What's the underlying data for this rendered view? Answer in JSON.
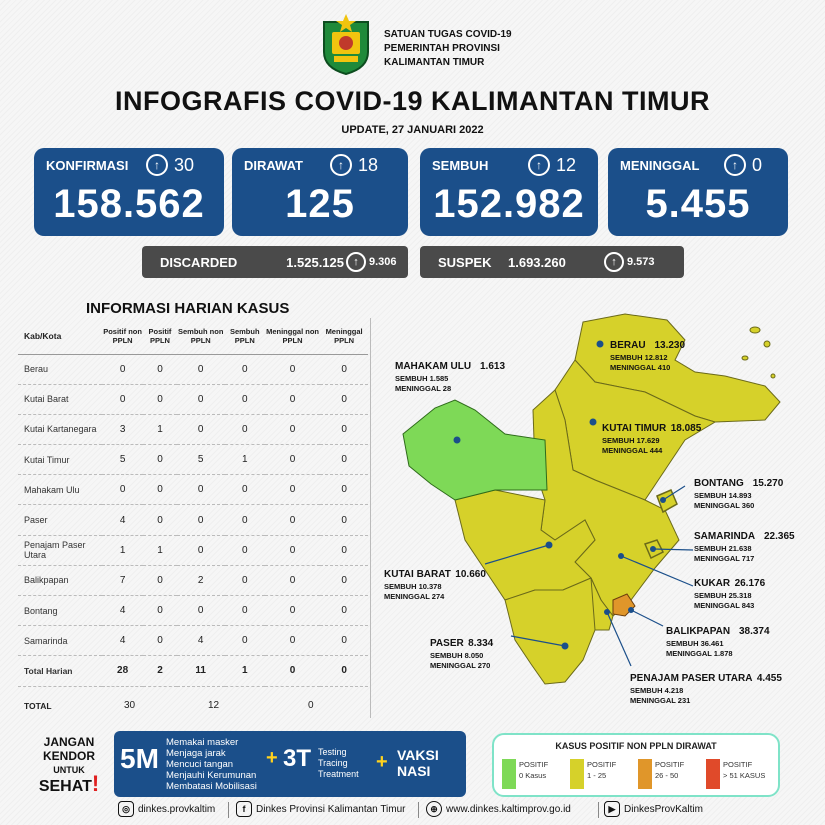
{
  "header": {
    "org_lines": [
      "SATUAN TUGAS COVID-19",
      "PEMERINTAH PROVINSI",
      "KALIMANTAN TIMUR"
    ],
    "title": "INFOGRAFIS COVID-19 KALIMANTAN TIMUR",
    "update": "UPDATE, 27 JANUARI 2022"
  },
  "stats": [
    {
      "label": "KONFIRMASI",
      "delta": "30",
      "value": "158.562"
    },
    {
      "label": "DIRAWAT",
      "delta": "18",
      "value": "125"
    },
    {
      "label": "SEMBUH",
      "delta": "12",
      "value": "152.982"
    },
    {
      "label": "MENINGGAL",
      "delta": "0",
      "value": "5.455"
    }
  ],
  "secondary": [
    {
      "label": "DISCARDED",
      "value": "1.525.125",
      "delta": "9.306"
    },
    {
      "label": "SUSPEK",
      "value": "1.693.260",
      "delta": "9.573"
    }
  ],
  "table": {
    "title": "INFORMASI HARIAN KASUS",
    "headers": [
      "Kab/Kota",
      "Positif non PPLN",
      "Positif PPLN",
      "Sembuh non PPLN",
      "Sembuh PPLN",
      "Meninggal non PPLN",
      "Meninggal PPLN"
    ],
    "rows": [
      [
        "Berau",
        "0",
        "0",
        "0",
        "0",
        "0",
        "0"
      ],
      [
        "Kutai Barat",
        "0",
        "0",
        "0",
        "0",
        "0",
        "0"
      ],
      [
        "Kutai Kartanegara",
        "3",
        "1",
        "0",
        "0",
        "0",
        "0"
      ],
      [
        "Kutai Timur",
        "5",
        "0",
        "5",
        "1",
        "0",
        "0"
      ],
      [
        "Mahakam Ulu",
        "0",
        "0",
        "0",
        "0",
        "0",
        "0"
      ],
      [
        "Paser",
        "4",
        "0",
        "0",
        "0",
        "0",
        "0"
      ],
      [
        "Penajam Paser Utara",
        "1",
        "1",
        "0",
        "0",
        "0",
        "0"
      ],
      [
        "Balikpapan",
        "7",
        "0",
        "2",
        "0",
        "0",
        "0"
      ],
      [
        "Bontang",
        "4",
        "0",
        "0",
        "0",
        "0",
        "0"
      ],
      [
        "Samarinda",
        "4",
        "0",
        "4",
        "0",
        "0",
        "0"
      ]
    ],
    "total_harian": [
      "Total Harian",
      "28",
      "2",
      "11",
      "1",
      "0",
      "0"
    ],
    "total_label": "TOTAL",
    "totals": [
      "30",
      "12",
      "0"
    ]
  },
  "map_regions": [
    {
      "name": "BERAU",
      "total": "13.230",
      "sembuh": "SEMBUH 12.812",
      "meninggal": "MENINGGAL 410"
    },
    {
      "name": "MAHAKAM ULU",
      "total": "1.613",
      "sembuh": "SEMBUH 1.585",
      "meninggal": "MENINGGAL 28"
    },
    {
      "name": "KUTAI TIMUR",
      "total": "18.085",
      "sembuh": "SEMBUH 17.629",
      "meninggal": "MENINGGAL 444"
    },
    {
      "name": "BONTANG",
      "total": "15.270",
      "sembuh": "SEMBUH 14.893",
      "meninggal": "MENINGGAL 360"
    },
    {
      "name": "SAMARINDA",
      "total": "22.365",
      "sembuh": "SEMBUH 21.638",
      "meninggal": "MENINGGAL 717"
    },
    {
      "name": "KUTAI BARAT",
      "total": "10.660",
      "sembuh": "SEMBUH 10.378",
      "meninggal": "MENINGGAL 274"
    },
    {
      "name": "KUKAR",
      "total": "26.176",
      "sembuh": "SEMBUH 25.318",
      "meninggal": "MENINGGAL 843"
    },
    {
      "name": "BALIKPAPAN",
      "total": "38.374",
      "sembuh": "SEMBUH 36.461",
      "meninggal": "MENINGGAL 1.878"
    },
    {
      "name": "PASER",
      "total": "8.334",
      "sembuh": "SEMBUH 8.050",
      "meninggal": "MENINGGAL 270"
    },
    {
      "name": "PENAJAM PASER UTARA",
      "total": "4.455",
      "sembuh": "SEMBUH 4.218",
      "meninggal": "MENINGGAL 231"
    }
  ],
  "colors": {
    "blue": "#1b4f8a",
    "green": "#7ed957",
    "yellow": "#d6d12a",
    "orange": "#e0962a",
    "red": "#e04a2a"
  },
  "campaign": {
    "jangan": [
      "JANGAN",
      "KENDOR",
      "UNTUK",
      "SEHAT"
    ],
    "m5": "5M",
    "m5_items": [
      "Memakai masker",
      "Menjaga jarak",
      "Mencuci tangan",
      "Menjauhi Kerumunan",
      "Membatasi Mobilisasi"
    ],
    "t3": "3T",
    "t3_items": [
      "Testing",
      "Tracing",
      "Treatment"
    ],
    "vaksi": [
      "VAKSI",
      "NASI"
    ]
  },
  "legend": {
    "title": "KASUS POSITIF NON PPLN DIRAWAT",
    "items": [
      {
        "label1": "POSITIF",
        "label2": "0 Kasus",
        "color": "#7ed957"
      },
      {
        "label1": "POSITIF",
        "label2": "1 - 25",
        "color": "#d6d12a"
      },
      {
        "label1": "POSITIF",
        "label2": "26 - 50",
        "color": "#e0962a"
      },
      {
        "label1": "POSITIF",
        "label2": "> 51 KASUS",
        "color": "#e04a2a"
      }
    ]
  },
  "footer": {
    "instagram": "dinkes.provkaltim",
    "facebook": "Dinkes Provinsi Kalimantan Timur",
    "web": "www.dinkes.kaltimprov.go.id",
    "youtube": "DinkesProvKaltim"
  }
}
